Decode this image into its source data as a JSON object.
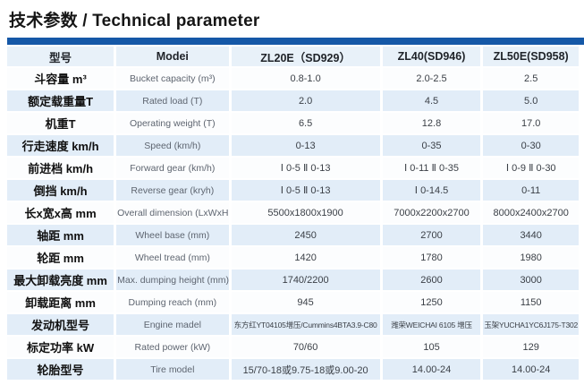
{
  "title": "技术参数 / Technical parameter",
  "colors": {
    "accent_bar": "#1558a7",
    "header_bg": "#e8f1f9",
    "row_bg": "#fcfdfe",
    "row_alt_bg": "#e2edf8"
  },
  "table": {
    "header": {
      "cn": "型号",
      "en": "Modei",
      "models": [
        "ZL20E（SD929）",
        "ZL40(SD946)",
        "ZL50E(SD958)"
      ]
    },
    "rows": [
      {
        "cn": "斗容量 m³",
        "en": "Bucket capacity (m³)",
        "values": [
          "0.8-1.0",
          "2.0-2.5",
          "2.5"
        ]
      },
      {
        "cn": "额定载重量T",
        "en": "Rated load (T)",
        "values": [
          "2.0",
          "4.5",
          "5.0"
        ]
      },
      {
        "cn": "机重T",
        "en": "Operating weight (T)",
        "values": [
          "6.5",
          "12.8",
          "17.0"
        ]
      },
      {
        "cn": "行走速度 km/h",
        "en": "Speed (km/h)",
        "values": [
          "0-13",
          "0-35",
          "0-30"
        ]
      },
      {
        "cn": "前进档 km/h",
        "en": "Forward gear (km/h)",
        "values": [
          "Ⅰ 0-5 Ⅱ 0-13",
          "Ⅰ 0-11 Ⅱ 0-35",
          "Ⅰ 0-9 Ⅱ 0-30"
        ]
      },
      {
        "cn": "倒挡 km/h",
        "en": "Reverse gear (kryh)",
        "values": [
          "Ⅰ 0-5 Ⅱ 0-13",
          "Ⅰ 0-14.5",
          "0-11"
        ]
      },
      {
        "cn": "长x宽x高 mm",
        "en": "Overall dimension (LxWxH mm)",
        "values": [
          "5500x1800x1900",
          "7000x2200x2700",
          "8000x2400x2700"
        ]
      },
      {
        "cn": "轴距 mm",
        "en": "Wheel base (mm)",
        "values": [
          "2450",
          "2700",
          "3440"
        ]
      },
      {
        "cn": "轮距 mm",
        "en": "Wheel tread (mm)",
        "values": [
          "1420",
          "1780",
          "1980"
        ]
      },
      {
        "cn": "最大卸载亮度 mm",
        "en": "Max. dumping height (mm)",
        "values": [
          "1740/2200",
          "2600",
          "3000"
        ]
      },
      {
        "cn": "卸载距离 mm",
        "en": "Dumping reach (mm)",
        "values": [
          "945",
          "1250",
          "1150"
        ]
      },
      {
        "cn": "发动机型号",
        "en": "Engine madel",
        "values": [
          "东方红YT04105增压/Cummins4BTA3.9-C80",
          "潍荣WEICHAI 6105 增压",
          "玉架YUCHA1YC6J175-T302"
        ]
      },
      {
        "cn": "标定功率 kW",
        "en": "Rated power (kW)",
        "values": [
          "70/60",
          "105",
          "129"
        ]
      },
      {
        "cn": "轮胎型号",
        "en": "Tire model",
        "values": [
          "15/70-18或9.75-18或9.00-20",
          "14.00-24",
          "14.00-24"
        ]
      }
    ]
  }
}
